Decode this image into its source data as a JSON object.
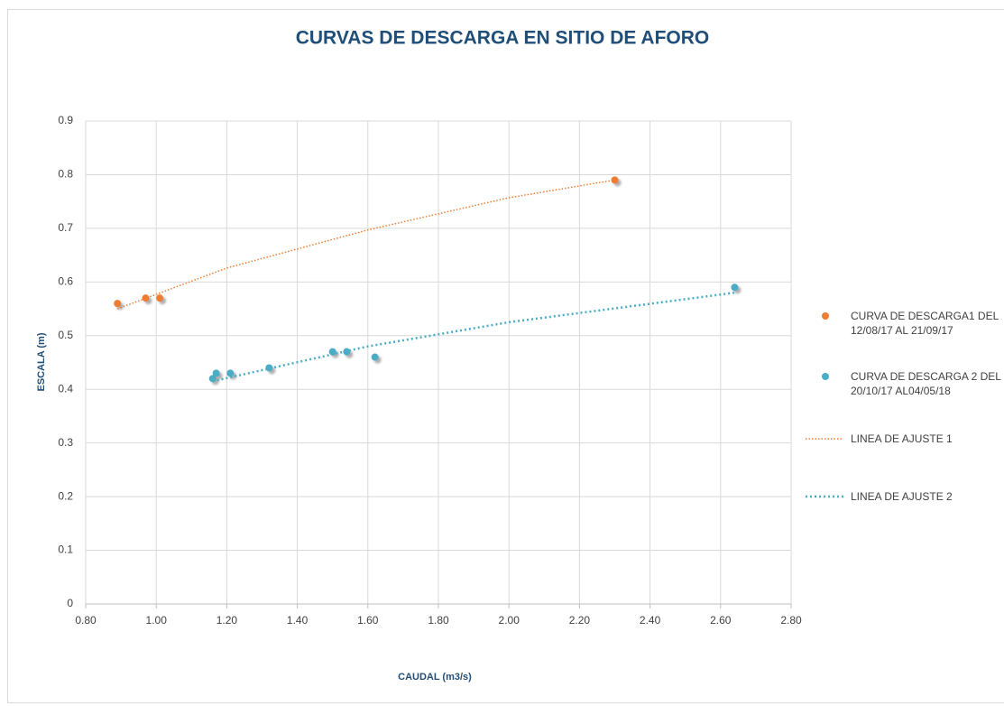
{
  "chart_data": {
    "type": "scatter",
    "title": "CURVAS DE DESCARGA EN SITIO DE AFORO",
    "xlabel": "CAUDAL (m3/s)",
    "ylabel": "ESCALA (m)",
    "xlim": [
      0.8,
      2.8
    ],
    "xticks": [
      {
        "value": 0.8,
        "label": "0.80"
      },
      {
        "value": 1.0,
        "label": "1.00"
      },
      {
        "value": 1.2,
        "label": "1.20"
      },
      {
        "value": 1.4,
        "label": "1.40"
      },
      {
        "value": 1.6,
        "label": "1.60"
      },
      {
        "value": 1.8,
        "label": "1.80"
      },
      {
        "value": 2.0,
        "label": "2.00"
      },
      {
        "value": 2.2,
        "label": "2.20"
      },
      {
        "value": 2.4,
        "label": "2.40"
      },
      {
        "value": 2.6,
        "label": "2.60"
      },
      {
        "value": 2.8,
        "label": "2.80"
      }
    ],
    "ylim": [
      0,
      0.9
    ],
    "yticks": [
      0,
      0.1,
      0.2,
      0.3,
      0.4,
      0.5,
      0.6,
      0.7,
      0.8,
      0.9
    ],
    "grid": true,
    "legend": "right",
    "series": [
      {
        "name": "CURVA DE DESCARGA1 DEL 12/08/17 AL 21/09/17",
        "type": "scatter",
        "color": "#ed7d31",
        "x": [
          0.89,
          0.97,
          1.01,
          2.3
        ],
        "values": [
          0.56,
          0.57,
          0.57,
          0.79
        ]
      },
      {
        "name": "CURVA DE DESCARGA 2 DEL 20/10/17 AL04/05/18",
        "type": "scatter",
        "color": "#4bacc6",
        "x": [
          1.16,
          1.17,
          1.21,
          1.32,
          1.5,
          1.54,
          1.62,
          2.64
        ],
        "values": [
          0.42,
          0.43,
          0.43,
          0.44,
          0.47,
          0.47,
          0.46,
          0.59
        ]
      },
      {
        "name": "LINEA DE AJUSTE 1",
        "type": "line",
        "color": "#ed7d31",
        "x": [
          0.89,
          1.2,
          1.6,
          2.0,
          2.3
        ],
        "values": [
          0.55,
          0.626,
          0.697,
          0.757,
          0.79
        ]
      },
      {
        "name": "LINEA DE AJUSTE 2",
        "type": "line",
        "color": "#4bacc6",
        "x": [
          1.16,
          1.6,
          2.0,
          2.64
        ],
        "values": [
          0.415,
          0.48,
          0.525,
          0.58
        ]
      }
    ]
  }
}
